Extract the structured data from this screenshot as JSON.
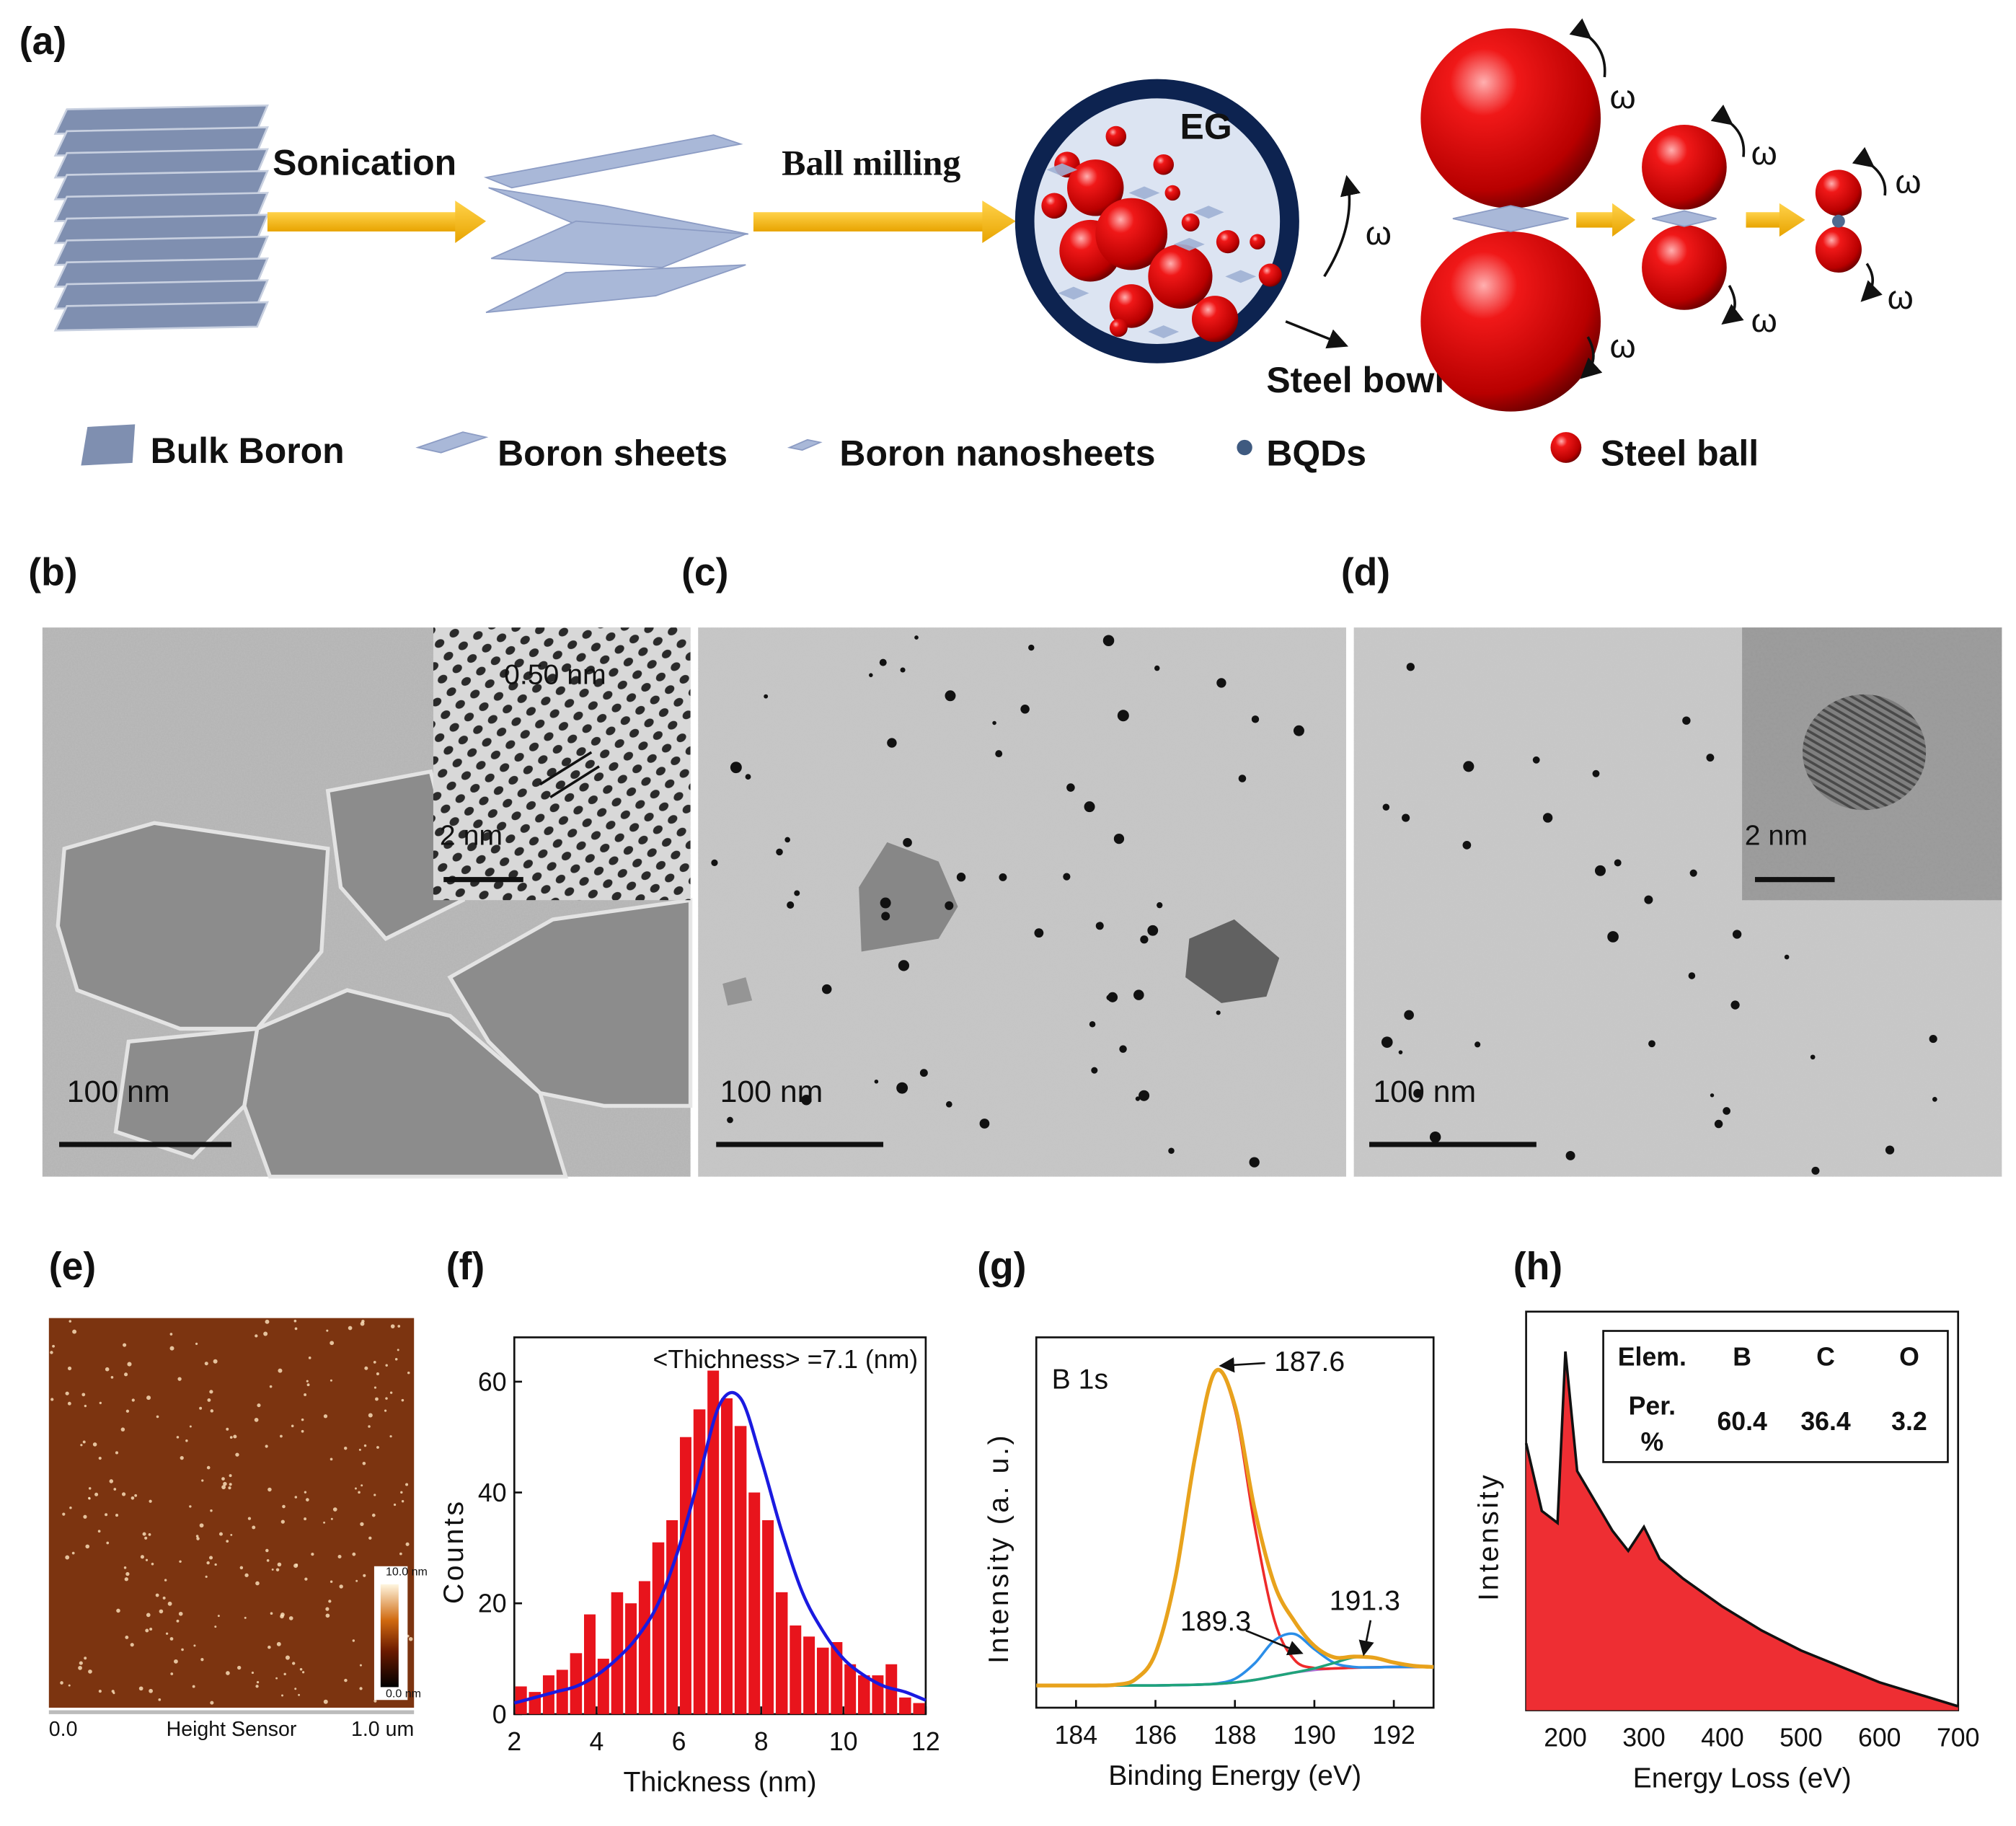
{
  "panel_labels": [
    "(a)",
    "(b)",
    "(c)",
    "(d)",
    "(e)",
    "(f)",
    "(g)",
    "(h)"
  ],
  "schematic": {
    "sonication": "Sonication",
    "ball_milling": "Ball milling",
    "eg": "EG",
    "steel_bowl": "Steel bowl",
    "omega": [
      "ω",
      "ω",
      "ω",
      "ω",
      "ω",
      "ω",
      "ω"
    ],
    "legend": [
      "Bulk Boron",
      "Boron sheets",
      "Boron nanosheets",
      "BQDs",
      "Steel ball"
    ]
  },
  "tem": {
    "b": {
      "scale": "100 nm",
      "inset_spacing": "0.50 nm",
      "inset_scale": "2 nm"
    },
    "c": {
      "scale": "100 nm"
    },
    "d": {
      "scale": "100 nm",
      "inset_scale": "2 nm"
    }
  },
  "afm": {
    "colorbar": [
      "10.0 nm",
      "0.0 nm"
    ],
    "x_labels": [
      "0.0",
      "Height Sensor",
      "1.0 um"
    ]
  },
  "chart_data": [
    {
      "type": "histogram",
      "bins": [
        2,
        2.33,
        2.67,
        3,
        3.33,
        3.67,
        4,
        4.33,
        4.67,
        5,
        5.33,
        5.67,
        6,
        6.33,
        6.67,
        7,
        7.33,
        7.67,
        8,
        8.33,
        8.67,
        9,
        9.33,
        9.67,
        10,
        10.33,
        10.67,
        11,
        11.33,
        11.67,
        12
      ],
      "values": [
        5,
        4,
        7,
        8,
        11,
        18,
        10,
        22,
        20,
        24,
        31,
        35,
        50,
        55,
        62,
        57,
        52,
        40,
        35,
        22,
        16,
        14,
        12,
        13,
        9,
        7,
        7,
        9,
        3,
        2
      ],
      "color": "#e8141c",
      "fit": {
        "x": [
          2,
          2.5,
          3,
          3.5,
          4,
          4.5,
          5,
          5.5,
          6,
          6.5,
          7,
          7.5,
          8,
          8.5,
          9,
          9.5,
          10,
          10.5,
          11,
          11.5,
          12
        ],
        "values": [
          2,
          3,
          4,
          5,
          7,
          10,
          14,
          20,
          30,
          43,
          56,
          57,
          46,
          33,
          22,
          15,
          10,
          7,
          5,
          4,
          2.5
        ],
        "color": "#1a1ae0"
      },
      "annotation": "<Thichness> =7.1 (nm)",
      "x_label": "Thickness (nm)",
      "y_label": "Counts",
      "xlim": [
        2,
        12
      ],
      "ylim": [
        0,
        68
      ],
      "xticks": [
        2,
        4,
        6,
        8,
        10,
        12
      ],
      "yticks": [
        0,
        20,
        40,
        60
      ]
    },
    {
      "type": "line",
      "x": [
        183,
        183.5,
        184,
        184.5,
        185,
        185.5,
        186,
        186.5,
        187,
        187.5,
        188,
        188.5,
        189,
        189.5,
        190,
        190.5,
        191,
        191.5,
        192,
        192.5,
        193
      ],
      "series": [
        {
          "color": "#b070d8",
          "values": [
            6,
            6,
            6,
            6,
            6,
            6,
            6,
            6.1,
            6.2,
            6.4,
            6.8,
            7.5,
            8.5,
            9.5,
            10.2,
            10.6,
            10.8,
            10.9,
            11,
            11,
            11
          ]
        },
        {
          "color": "#ee2a2a",
          "values": [
            6,
            6,
            6,
            6,
            6.2,
            7.7,
            14.7,
            35.1,
            67.9,
            90.6,
            80.5,
            48.9,
            23.4,
            12.9,
            10.7,
            10.6,
            10.8,
            10.9,
            11,
            11,
            11
          ]
        },
        {
          "color": "#2b8ee8",
          "values": [
            6,
            6,
            6,
            6,
            6,
            6,
            6,
            6.1,
            6.2,
            6.5,
            7.8,
            12,
            18.2,
            19.9,
            15.8,
            12.1,
            11,
            10.9,
            11,
            11,
            11
          ]
        },
        {
          "color": "#1fa37a",
          "values": [
            6,
            6,
            6,
            6,
            6,
            6,
            6,
            6.1,
            6.2,
            6.4,
            6.8,
            7.5,
            8.5,
            9.5,
            10.6,
            12.1,
            13.6,
            13.5,
            12.2,
            11.3,
            11
          ]
        },
        {
          "color": "#e8a21c",
          "values": [
            6,
            6,
            6,
            6,
            6.2,
            7.7,
            14.7,
            35.1,
            67.9,
            90.7,
            81.5,
            53.4,
            33.1,
            23.3,
            16.7,
            13.6,
            13.8,
            13.5,
            12.2,
            11.3,
            11
          ]
        }
      ],
      "annotations": [
        "B 1s",
        "187.6",
        "189.3",
        "191.3"
      ],
      "x_label": "Binding Energy (eV)",
      "y_label": "Intensity (a. u.)",
      "xlim": [
        183,
        193
      ],
      "ylim": [
        0,
        100
      ],
      "xticks": [
        184,
        186,
        188,
        190,
        192
      ]
    },
    {
      "type": "area",
      "x": [
        150,
        170,
        190,
        200,
        205,
        215,
        230,
        260,
        280,
        300,
        320,
        350,
        400,
        450,
        500,
        550,
        600,
        650,
        700
      ],
      "values": [
        67,
        50,
        47,
        90,
        80,
        60,
        55,
        45,
        40,
        46,
        38,
        33,
        26,
        20,
        15,
        11,
        7,
        4,
        1
      ],
      "color": "#ee2e33",
      "x_label": "Energy Loss (eV)",
      "y_label": "Intensity",
      "xlim": [
        150,
        700
      ],
      "ylim": [
        0,
        100
      ],
      "xticks": [
        200,
        300,
        400,
        500,
        600,
        700
      ],
      "table": {
        "header": [
          "Elem.",
          "B",
          "C",
          "O"
        ],
        "row_label": [
          "Per.",
          "%"
        ],
        "values": [
          60.4,
          36.4,
          3.2
        ]
      }
    }
  ]
}
